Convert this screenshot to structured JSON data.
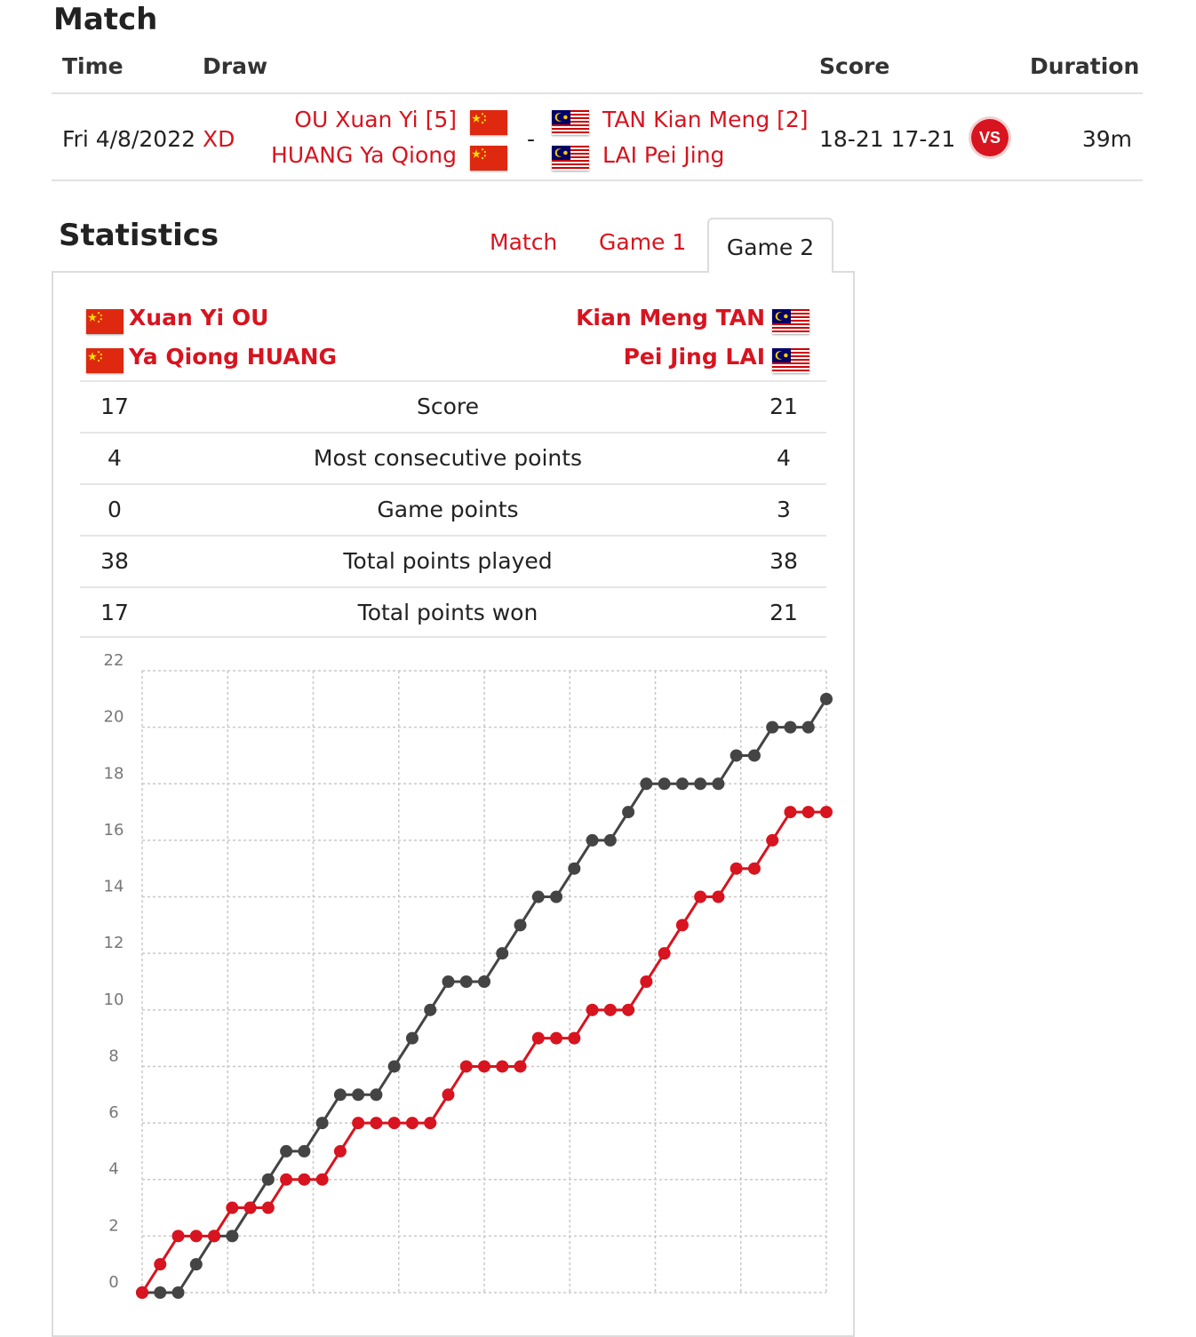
{
  "match": {
    "heading": "Match",
    "columns": {
      "time": "Time",
      "draw": "Draw",
      "score": "Score",
      "duration": "Duration"
    },
    "row": {
      "date": "Fri 4/8/2022",
      "event": "XD",
      "team1": [
        "OU Xuan Yi [5]",
        "HUANG Ya Qiong"
      ],
      "separator": "-",
      "team2": [
        "TAN Kian Meng [2]",
        "LAI Pei Jing"
      ],
      "score": "18-21 17-21",
      "vs_icon": "VS",
      "duration": "39m"
    }
  },
  "statistics": {
    "heading": "Statistics",
    "tabs": [
      "Match",
      "Game 1",
      "Game 2"
    ],
    "active_tab": "Game 2",
    "team1": [
      "Xuan Yi OU",
      "Ya Qiong HUANG"
    ],
    "team2": [
      "Kian Meng TAN",
      "Pei Jing LAI"
    ],
    "rows": [
      {
        "left": "17",
        "label": "Score",
        "right": "21"
      },
      {
        "left": "4",
        "label": "Most consecutive points",
        "right": "4"
      },
      {
        "left": "0",
        "label": "Game points",
        "right": "3"
      },
      {
        "left": "38",
        "label": "Total points played",
        "right": "38"
      },
      {
        "left": "17",
        "label": "Total points won",
        "right": "21"
      }
    ]
  },
  "colors": {
    "accent": "#d7141f",
    "team1_line": "#d7141f",
    "team2_line": "#444444"
  },
  "icons": {
    "china_flag": "china-flag-icon",
    "malaysia_flag": "malaysia-flag-icon",
    "vs": "vs-icon"
  },
  "chart_data": {
    "type": "line",
    "x": [
      0,
      1,
      2,
      3,
      4,
      5,
      6,
      7,
      8,
      9,
      10,
      11,
      12,
      13,
      14,
      15,
      16,
      17,
      18,
      19,
      20,
      21,
      22,
      23,
      24,
      25,
      26,
      27,
      28,
      29,
      30,
      31,
      32,
      33,
      34,
      35,
      36,
      37,
      38
    ],
    "ylim": [
      0,
      22
    ],
    "yticks": [
      0,
      2,
      4,
      6,
      8,
      10,
      12,
      14,
      16,
      18,
      20,
      22
    ],
    "grid": true,
    "series": [
      {
        "values": [
          0,
          1,
          2,
          2,
          2,
          3,
          3,
          3,
          4,
          4,
          4,
          5,
          6,
          6,
          6,
          6,
          6,
          7,
          8,
          8,
          8,
          8,
          9,
          9,
          9,
          10,
          10,
          10,
          11,
          12,
          13,
          14,
          14,
          15,
          15,
          16,
          17,
          17,
          17
        ]
      },
      {
        "values": [
          0,
          0,
          0,
          1,
          2,
          2,
          3,
          4,
          5,
          5,
          6,
          7,
          7,
          7,
          8,
          9,
          10,
          11,
          11,
          11,
          12,
          13,
          14,
          14,
          15,
          16,
          16,
          17,
          18,
          18,
          18,
          18,
          18,
          19,
          19,
          20,
          20,
          20,
          21
        ]
      }
    ]
  }
}
